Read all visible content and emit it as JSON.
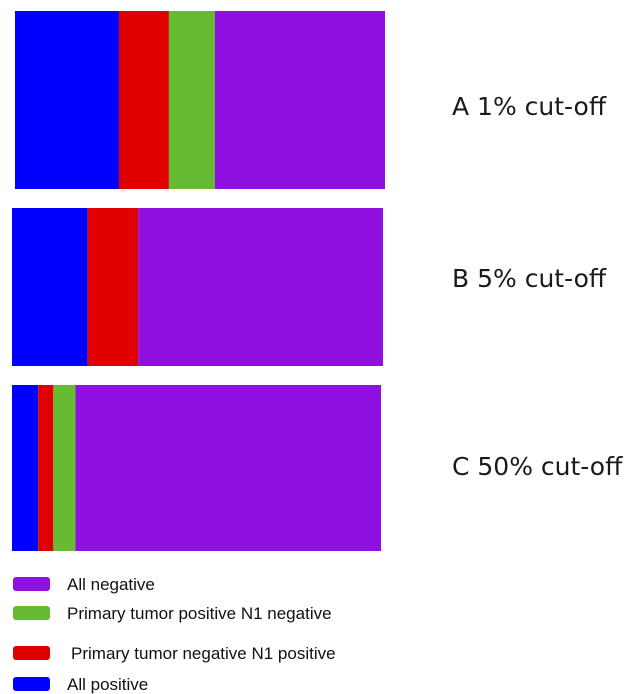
{
  "chart_data": {
    "type": "bar",
    "orientation": "horizontal",
    "stacked": true,
    "title": "",
    "xlabel": "",
    "ylabel": "",
    "xlim": [
      0,
      100
    ],
    "grid": false,
    "axes_visible": false,
    "legend_position": "bottom-left",
    "categories": [
      "A 1% cut-off",
      "B 5% cut-off",
      "C 50% cut-off"
    ],
    "series": [
      {
        "name": "All positive",
        "color": "#0000FF",
        "values": [
          28.1,
          20.4,
          7.1
        ]
      },
      {
        "name": "Primary tumor negative N1 positive",
        "color": "#E00000",
        "values": [
          13.5,
          13.6,
          4.1
        ]
      },
      {
        "name": "Primary tumor positive  N1 negative",
        "color": "#66BB33",
        "values": [
          12.4,
          0,
          6.0
        ]
      },
      {
        "name": "All negative",
        "color": "#9010E0",
        "values": [
          46.0,
          66.0,
          82.8
        ]
      }
    ],
    "legend_order": [
      "All negative",
      "Primary tumor positive  N1 negative",
      "Primary tumor negative N1 positive",
      "All positive"
    ]
  }
}
